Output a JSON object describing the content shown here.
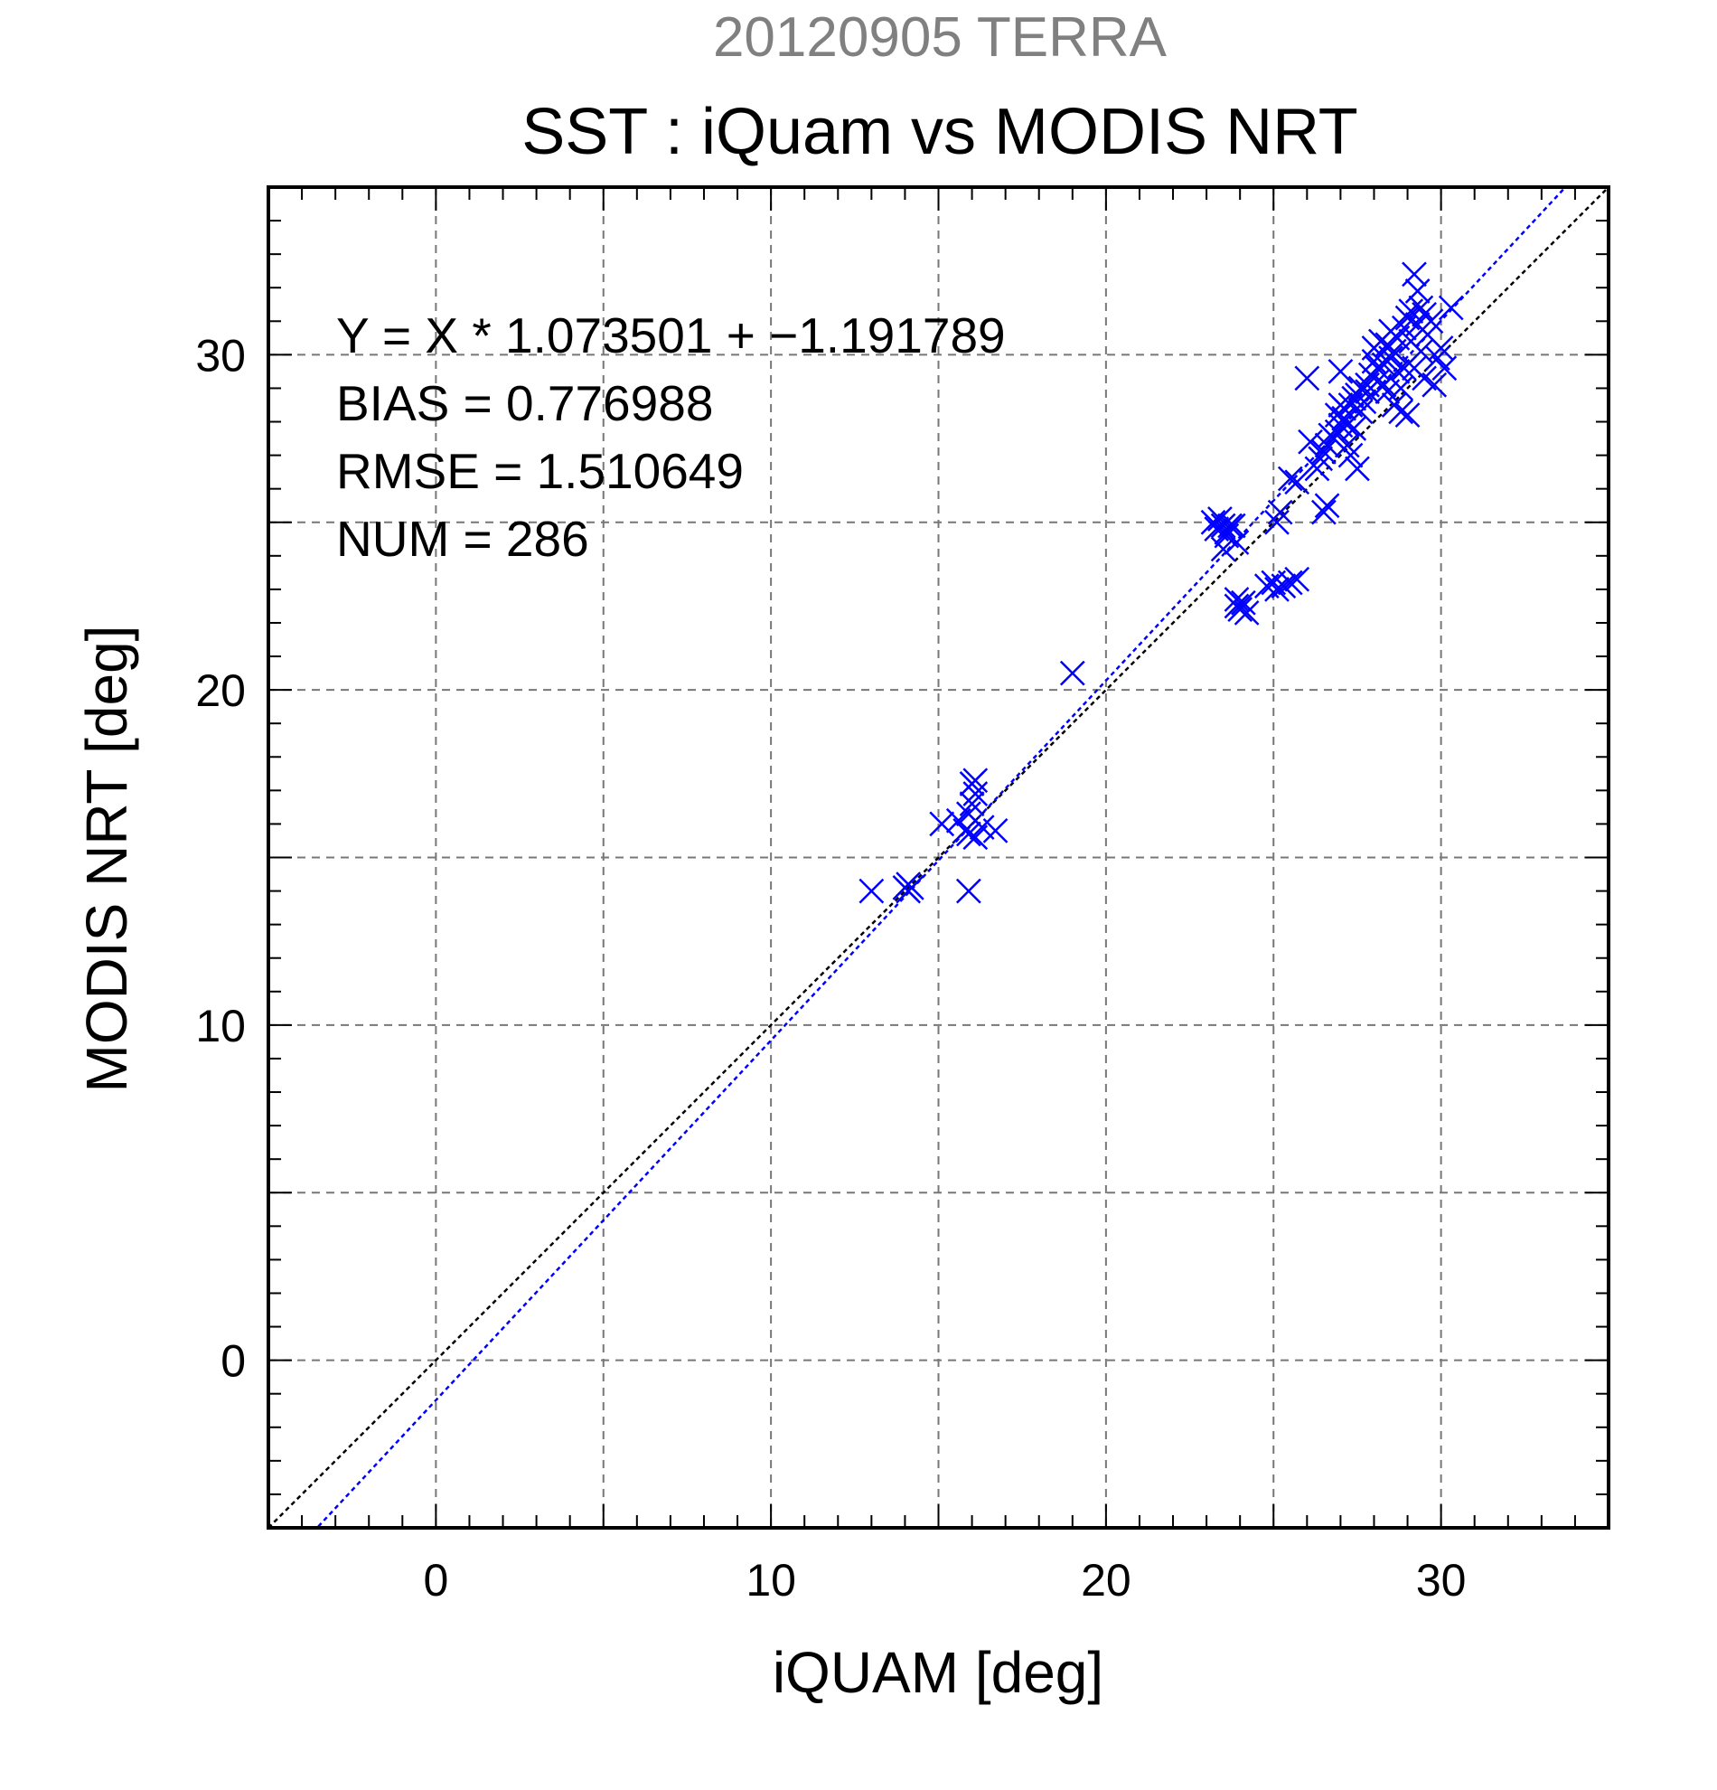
{
  "chart_data": {
    "type": "scatter",
    "supertitle": "20120905 TERRA",
    "title": "SST : iQuam vs MODIS NRT",
    "xlabel": "iQUAM [deg]",
    "ylabel": "MODIS NRT [deg]",
    "xlim": [
      -5,
      35
    ],
    "ylim": [
      -5,
      35
    ],
    "xticks": [
      0,
      10,
      20,
      30
    ],
    "yticks": [
      0,
      10,
      20,
      30
    ],
    "grid": true,
    "marker": "x",
    "series_color": "#0000ff",
    "stats": [
      "Y = X * 1.073501 + −1.191789",
      "BIAS = 0.776988",
      "RMSE = 1.510649",
      "NUM = 286"
    ],
    "lines": [
      {
        "label": "identity",
        "slope": 1.0,
        "intercept": 0.0,
        "color": "#000000",
        "style": "dotted"
      },
      {
        "label": "fit",
        "slope": 1.073501,
        "intercept": -1.191789,
        "color": "#0000ff",
        "style": "dotted"
      }
    ],
    "points": [
      [
        13.0,
        14.0
      ],
      [
        14.0,
        14.1
      ],
      [
        14.1,
        14.2
      ],
      [
        14.2,
        14.1
      ],
      [
        14.1,
        14.0
      ],
      [
        15.1,
        16.0
      ],
      [
        15.6,
        16.1
      ],
      [
        15.8,
        15.8
      ],
      [
        15.9,
        16.3
      ],
      [
        16.0,
        16.6
      ],
      [
        16.0,
        17.2
      ],
      [
        16.1,
        17.3
      ],
      [
        16.1,
        16.9
      ],
      [
        16.3,
        15.9
      ],
      [
        15.9,
        14.0
      ],
      [
        16.1,
        15.6
      ],
      [
        15.9,
        15.7
      ],
      [
        16.7,
        15.8
      ],
      [
        19.0,
        20.5
      ],
      [
        23.2,
        25.0
      ],
      [
        23.3,
        24.8
      ],
      [
        23.4,
        25.1
      ],
      [
        23.5,
        24.9
      ],
      [
        23.6,
        24.6
      ],
      [
        23.8,
        24.9
      ],
      [
        23.9,
        24.4
      ],
      [
        23.5,
        24.2
      ],
      [
        23.6,
        24.7
      ],
      [
        23.7,
        24.9
      ],
      [
        23.9,
        22.5
      ],
      [
        24.0,
        22.4
      ],
      [
        24.1,
        22.6
      ],
      [
        24.2,
        22.3
      ],
      [
        23.9,
        22.7
      ],
      [
        24.8,
        23.1
      ],
      [
        25.0,
        23.2
      ],
      [
        25.1,
        23.0
      ],
      [
        25.3,
        23.1
      ],
      [
        25.5,
        23.2
      ],
      [
        25.7,
        23.3
      ],
      [
        25.1,
        25.0
      ],
      [
        25.2,
        25.3
      ],
      [
        25.5,
        26.3
      ],
      [
        25.7,
        26.2
      ],
      [
        26.0,
        29.3
      ],
      [
        26.1,
        27.4
      ],
      [
        26.3,
        26.6
      ],
      [
        26.4,
        26.9
      ],
      [
        26.5,
        25.3
      ],
      [
        26.6,
        25.5
      ],
      [
        26.5,
        27.1
      ],
      [
        26.6,
        27.3
      ],
      [
        26.7,
        27.6
      ],
      [
        26.8,
        27.5
      ],
      [
        26.9,
        27.7
      ],
      [
        26.9,
        28.2
      ],
      [
        27.0,
        27.9
      ],
      [
        27.0,
        28.5
      ],
      [
        27.1,
        28.1
      ],
      [
        27.1,
        28.4
      ],
      [
        27.2,
        27.3
      ],
      [
        27.2,
        27.9
      ],
      [
        27.3,
        28.5
      ],
      [
        27.3,
        27.0
      ],
      [
        27.4,
        28.7
      ],
      [
        27.4,
        27.8
      ],
      [
        27.5,
        28.8
      ],
      [
        27.5,
        26.6
      ],
      [
        27.6,
        28.3
      ],
      [
        27.6,
        29.0
      ],
      [
        27.7,
        28.6
      ],
      [
        27.8,
        29.1
      ],
      [
        27.8,
        28.9
      ],
      [
        27.9,
        29.4
      ],
      [
        27.0,
        29.5
      ],
      [
        28.0,
        29.8
      ],
      [
        28.0,
        30.2
      ],
      [
        28.1,
        29.6
      ],
      [
        28.1,
        29.2
      ],
      [
        28.2,
        30.0
      ],
      [
        28.2,
        30.4
      ],
      [
        28.3,
        29.7
      ],
      [
        28.3,
        29.1
      ],
      [
        28.4,
        30.3
      ],
      [
        28.4,
        28.9
      ],
      [
        28.5,
        29.9
      ],
      [
        28.5,
        30.7
      ],
      [
        28.6,
        30.1
      ],
      [
        28.6,
        28.5
      ],
      [
        28.7,
        29.5
      ],
      [
        28.7,
        30.5
      ],
      [
        28.8,
        29.0
      ],
      [
        28.8,
        28.3
      ],
      [
        28.9,
        30.8
      ],
      [
        28.9,
        29.6
      ],
      [
        29.0,
        31.1
      ],
      [
        29.0,
        28.2
      ],
      [
        29.1,
        30.4
      ],
      [
        29.1,
        31.3
      ],
      [
        29.2,
        32.4
      ],
      [
        29.2,
        29.6
      ],
      [
        29.3,
        30.9
      ],
      [
        29.3,
        31.9
      ],
      [
        29.4,
        31.4
      ],
      [
        29.4,
        30.1
      ],
      [
        29.5,
        31.2
      ],
      [
        29.5,
        29.3
      ],
      [
        29.6,
        30.6
      ],
      [
        29.7,
        31.0
      ],
      [
        29.8,
        29.1
      ],
      [
        29.9,
        29.9
      ],
      [
        30.0,
        30.2
      ],
      [
        30.1,
        29.6
      ],
      [
        30.3,
        31.4
      ]
    ]
  }
}
